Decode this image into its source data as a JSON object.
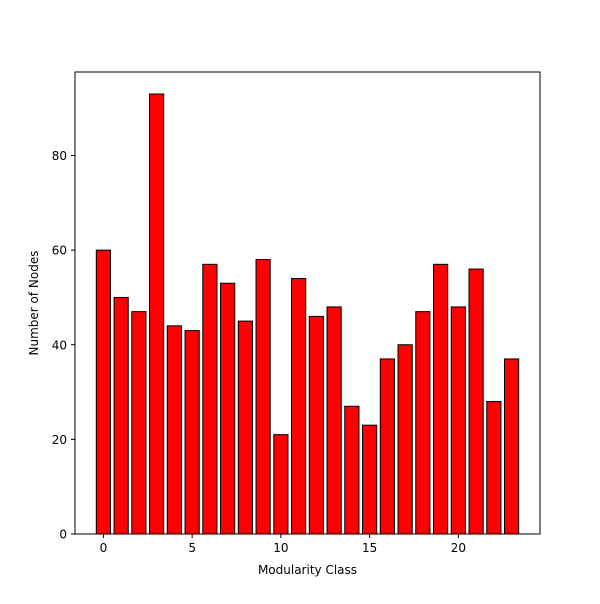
{
  "chart_data": {
    "type": "bar",
    "title": "",
    "xlabel": "Modularity Class",
    "ylabel": "Number of Nodes",
    "categories": [
      0,
      1,
      2,
      3,
      4,
      5,
      6,
      7,
      8,
      9,
      10,
      11,
      12,
      13,
      14,
      15,
      16,
      17,
      18,
      19,
      20,
      21,
      22,
      23
    ],
    "values": [
      60,
      50,
      47,
      93,
      44,
      43,
      57,
      53,
      45,
      58,
      21,
      54,
      46,
      48,
      27,
      23,
      37,
      40,
      47,
      57,
      48,
      56,
      28,
      37
    ],
    "xlim": [
      -1.6,
      24.6
    ],
    "ylim": [
      0,
      97.65
    ],
    "xticks": [
      0,
      5,
      10,
      15,
      20
    ],
    "yticks": [
      0,
      20,
      40,
      60,
      80
    ],
    "bar_color": "#ff0000",
    "edge_color": "#000000",
    "grid": false,
    "legend": "none"
  }
}
